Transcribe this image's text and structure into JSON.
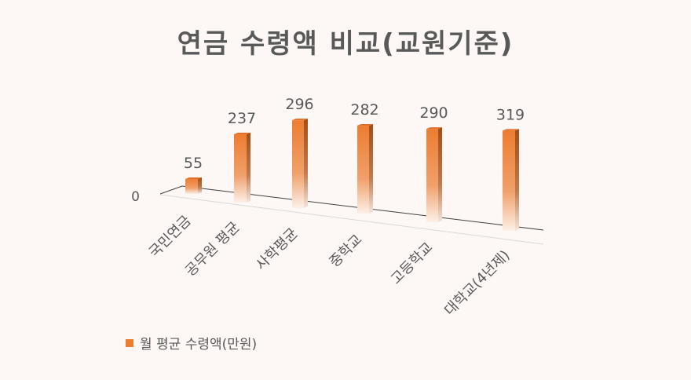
{
  "chart_data": {
    "type": "bar",
    "style": "3d-column",
    "title": "연금 수령액 비교(교원기준)",
    "categories": [
      "국민연금",
      "공무원 평균",
      "사학평균",
      "중학교",
      "고등학교",
      "대학교(4년제)"
    ],
    "series": [
      {
        "name": "월 평균 수령액(만원)",
        "values": [
          55,
          237,
          296,
          282,
          290,
          319
        ]
      }
    ],
    "y_tick_labels": [
      "0"
    ],
    "data_labels": true,
    "legend": "bottom-left",
    "grid": false,
    "colors": {
      "bar": "#ed7d31",
      "bar_side": "#a24f16",
      "text": "#595959",
      "background": "#fdf8f6"
    }
  }
}
